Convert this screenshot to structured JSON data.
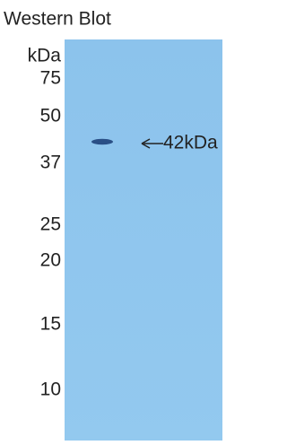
{
  "title": "Western Blot",
  "unit": "kDa",
  "markers": [
    "75",
    "50",
    "37",
    "25",
    "20",
    "15",
    "10"
  ],
  "annotation": "42kDa"
}
